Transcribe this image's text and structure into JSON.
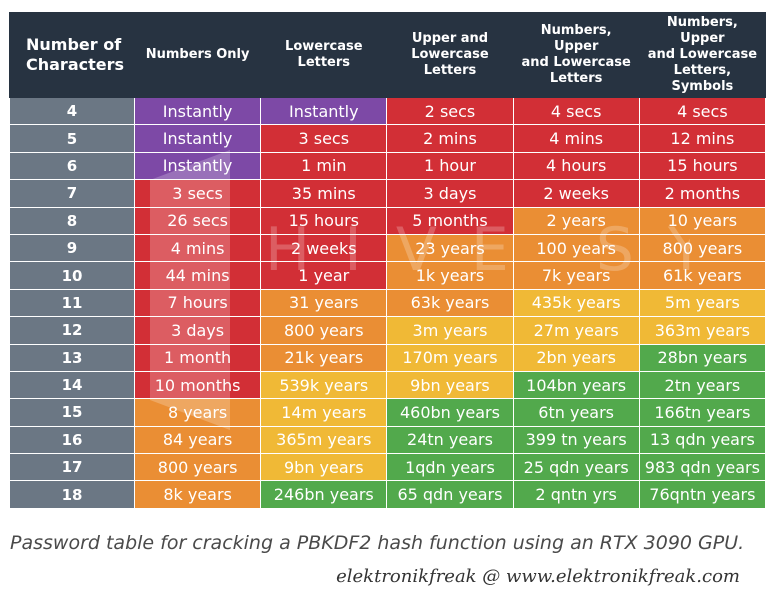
{
  "table": {
    "headers": [
      "Number of Characters",
      "Numbers Only",
      "Lowercase Letters",
      "Upper and Lowercase Letters",
      "Numbers, Upper and Lowercase Letters",
      "Numbers, Upper and Lowercase Letters, Symbols"
    ],
    "header_lines": [
      [
        "Number of",
        "Characters"
      ],
      [
        "Numbers Only"
      ],
      [
        "Lowercase",
        "Letters"
      ],
      [
        "Upper and",
        "Lowercase",
        "Letters"
      ],
      [
        "Numbers, Upper",
        "and Lowercase",
        "Letters"
      ],
      [
        "Numbers, Upper",
        "and Lowercase",
        "Letters, Symbols"
      ]
    ],
    "rows": [
      {
        "chars": "4",
        "cells": [
          {
            "t": "Instantly",
            "c": "p"
          },
          {
            "t": "Instantly",
            "c": "p"
          },
          {
            "t": "2 secs",
            "c": "r"
          },
          {
            "t": "4 secs",
            "c": "r"
          },
          {
            "t": "4 secs",
            "c": "r"
          }
        ]
      },
      {
        "chars": "5",
        "cells": [
          {
            "t": "Instantly",
            "c": "p"
          },
          {
            "t": "3 secs",
            "c": "r"
          },
          {
            "t": "2 mins",
            "c": "r"
          },
          {
            "t": "4 mins",
            "c": "r"
          },
          {
            "t": "12 mins",
            "c": "r"
          }
        ]
      },
      {
        "chars": "6",
        "cells": [
          {
            "t": "Instantly",
            "c": "p"
          },
          {
            "t": "1 min",
            "c": "r"
          },
          {
            "t": "1 hour",
            "c": "r"
          },
          {
            "t": "4 hours",
            "c": "r"
          },
          {
            "t": "15 hours",
            "c": "r"
          }
        ]
      },
      {
        "chars": "7",
        "cells": [
          {
            "t": "3 secs",
            "c": "r"
          },
          {
            "t": "35 mins",
            "c": "r"
          },
          {
            "t": "3 days",
            "c": "r"
          },
          {
            "t": "2 weeks",
            "c": "r"
          },
          {
            "t": "2 months",
            "c": "r"
          }
        ]
      },
      {
        "chars": "8",
        "cells": [
          {
            "t": "26 secs",
            "c": "r"
          },
          {
            "t": "15 hours",
            "c": "r"
          },
          {
            "t": "5 months",
            "c": "r"
          },
          {
            "t": "2 years",
            "c": "o"
          },
          {
            "t": "10 years",
            "c": "o"
          }
        ]
      },
      {
        "chars": "9",
        "cells": [
          {
            "t": "4 mins",
            "c": "r"
          },
          {
            "t": "2 weeks",
            "c": "r"
          },
          {
            "t": "23 years",
            "c": "o"
          },
          {
            "t": "100 years",
            "c": "o"
          },
          {
            "t": "800 years",
            "c": "o"
          }
        ]
      },
      {
        "chars": "10",
        "cells": [
          {
            "t": "44 mins",
            "c": "r"
          },
          {
            "t": "1 year",
            "c": "r"
          },
          {
            "t": "1k years",
            "c": "o"
          },
          {
            "t": "7k years",
            "c": "o"
          },
          {
            "t": "61k years",
            "c": "o"
          }
        ]
      },
      {
        "chars": "11",
        "cells": [
          {
            "t": "7 hours",
            "c": "r"
          },
          {
            "t": "31 years",
            "c": "o"
          },
          {
            "t": "63k years",
            "c": "o"
          },
          {
            "t": "435k years",
            "c": "y"
          },
          {
            "t": "5m years",
            "c": "y"
          }
        ]
      },
      {
        "chars": "12",
        "cells": [
          {
            "t": "3 days",
            "c": "r"
          },
          {
            "t": "800 years",
            "c": "o"
          },
          {
            "t": "3m years",
            "c": "y"
          },
          {
            "t": "27m years",
            "c": "y"
          },
          {
            "t": "363m years",
            "c": "y"
          }
        ]
      },
      {
        "chars": "13",
        "cells": [
          {
            "t": "1 month",
            "c": "r"
          },
          {
            "t": "21k years",
            "c": "o"
          },
          {
            "t": "170m years",
            "c": "y"
          },
          {
            "t": "2bn years",
            "c": "y"
          },
          {
            "t": "28bn years",
            "c": "g"
          }
        ]
      },
      {
        "chars": "14",
        "cells": [
          {
            "t": "10 months",
            "c": "r"
          },
          {
            "t": "539k years",
            "c": "y"
          },
          {
            "t": "9bn years",
            "c": "y"
          },
          {
            "t": "104bn years",
            "c": "g"
          },
          {
            "t": "2tn years",
            "c": "g"
          }
        ]
      },
      {
        "chars": "15",
        "cells": [
          {
            "t": "8 years",
            "c": "o"
          },
          {
            "t": "14m years",
            "c": "y"
          },
          {
            "t": "460bn years",
            "c": "g"
          },
          {
            "t": "6tn years",
            "c": "g"
          },
          {
            "t": "166tn years",
            "c": "g"
          }
        ]
      },
      {
        "chars": "16",
        "cells": [
          {
            "t": "84 years",
            "c": "o"
          },
          {
            "t": "365m years",
            "c": "y"
          },
          {
            "t": "24tn years",
            "c": "g"
          },
          {
            "t": "399 tn years",
            "c": "g"
          },
          {
            "t": "13 qdn years",
            "c": "g"
          }
        ]
      },
      {
        "chars": "17",
        "cells": [
          {
            "t": "800 years",
            "c": "o"
          },
          {
            "t": "9bn years",
            "c": "y"
          },
          {
            "t": "1qdn years",
            "c": "g"
          },
          {
            "t": "25 qdn years",
            "c": "g"
          },
          {
            "t": "983 qdn years",
            "c": "g"
          }
        ]
      },
      {
        "chars": "18",
        "cells": [
          {
            "t": "8k years",
            "c": "o"
          },
          {
            "t": "246bn years",
            "c": "g"
          },
          {
            "t": "65 qdn years",
            "c": "g"
          },
          {
            "t": "2 qntn yrs",
            "c": "g"
          },
          {
            "t": "76qntn years",
            "c": "g"
          }
        ]
      }
    ]
  },
  "watermark_text": "HIVE SYSTEMS",
  "caption": "Password table for cracking a PBKDF2 hash function using an RTX 3090 GPU.",
  "credit": "elektronikfreak @ www.elektronikfreak.com",
  "colors": {
    "header_bg": "#273341",
    "row_header_bg": "#6b7784",
    "purple": "#7d49a6",
    "red": "#d22f36",
    "orange": "#ea8e34",
    "yellow": "#f0b936",
    "green": "#52a94c"
  }
}
